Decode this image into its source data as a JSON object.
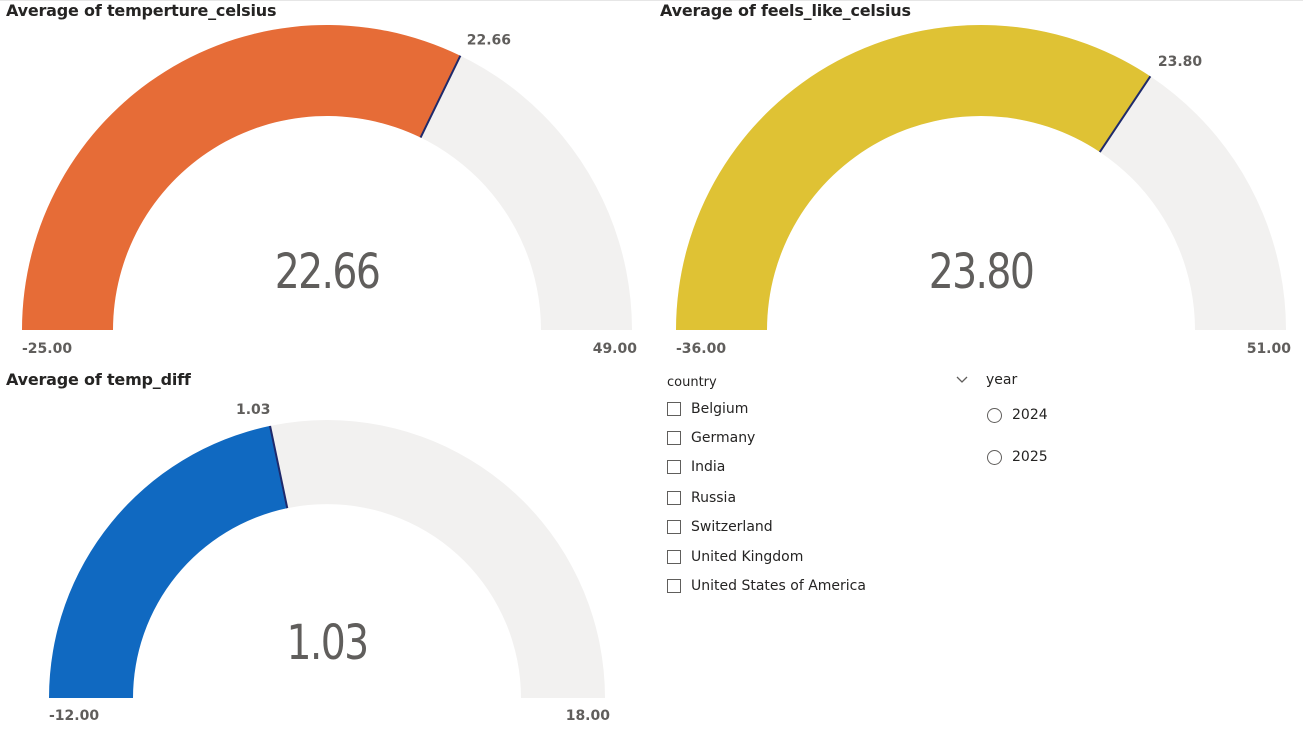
{
  "gauges": {
    "temperature": {
      "title": "Average of temperture_celsius",
      "value_text": "22.66",
      "target_label": "22.66",
      "min_label": "-25.00",
      "max_label": "49.00",
      "color": "#E66C37"
    },
    "feels_like": {
      "title": "Average of feels_like_celsius",
      "value_text": "23.80",
      "target_label": "23.80",
      "min_label": "-36.00",
      "max_label": "51.00",
      "color": "#DFC234"
    },
    "temp_diff": {
      "title": "Average of temp_diff",
      "value_text": "1.03",
      "target_label": "1.03",
      "min_label": "-12.00",
      "max_label": "18.00",
      "color": "#1069C1"
    }
  },
  "gauge_style": {
    "track_color": "#F2F1F0",
    "target_line_color": "#1F2A6B"
  },
  "chart_data": [
    {
      "type": "gauge",
      "title": "Average of temperture_celsius",
      "value": 22.66,
      "min": -25.0,
      "max": 49.0,
      "target": 22.66
    },
    {
      "type": "gauge",
      "title": "Average of feels_like_celsius",
      "value": 23.8,
      "min": -36.0,
      "max": 51.0,
      "target": 23.8
    },
    {
      "type": "gauge",
      "title": "Average of temp_diff",
      "value": 1.03,
      "min": -12.0,
      "max": 18.0,
      "target": 1.03
    }
  ],
  "slicers": {
    "country": {
      "header": "country",
      "items": [
        {
          "label": "Belgium",
          "checked": false
        },
        {
          "label": "Germany",
          "checked": false
        },
        {
          "label": "India",
          "checked": false
        },
        {
          "label": "Russia",
          "checked": false
        },
        {
          "label": "Switzerland",
          "checked": false
        },
        {
          "label": "United Kingdom",
          "checked": false
        },
        {
          "label": "United States of America",
          "checked": false
        }
      ]
    },
    "year": {
      "header": "year",
      "collapse_icon": "chevron-down-icon",
      "items": [
        {
          "label": "2024",
          "selected": false
        },
        {
          "label": "2025",
          "selected": false
        }
      ]
    }
  }
}
